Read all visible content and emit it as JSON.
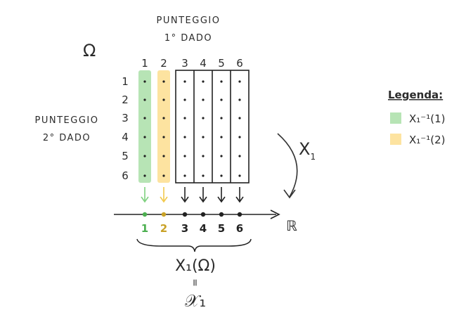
{
  "omega_symbol": "Ω",
  "top_label": {
    "line1": "PUNTEGGIO",
    "line2": "1° DADO"
  },
  "side_label": {
    "line1": "PUNTEGGIO",
    "line2": "2° DADO"
  },
  "columns": [
    "1",
    "2",
    "3",
    "4",
    "5",
    "6"
  ],
  "rows": [
    "1",
    "2",
    "3",
    "4",
    "5",
    "6"
  ],
  "axis": {
    "labels": [
      "1",
      "2",
      "3",
      "4",
      "5",
      "6"
    ],
    "label_colors": [
      "#4caf50",
      "#c9a227",
      "#222222",
      "#222222",
      "#222222",
      "#222222"
    ],
    "end_label": "ℝ"
  },
  "map_label": {
    "name": "X",
    "sub": "1"
  },
  "image_expr": {
    "top": "X₁(Ω)",
    "eq": "=",
    "bottom": "𝒳₁"
  },
  "legend": {
    "title": "Legenda:",
    "items": [
      {
        "text": "X₁⁻¹(1)",
        "color": "#b7e4b5"
      },
      {
        "text": "X₁⁻¹(2)",
        "color": "#fde3a0"
      }
    ]
  },
  "colors": {
    "col1_fill": "#b7e4b5",
    "col2_fill": "#fde3a0",
    "arrow1": "#7fd07f",
    "arrow2": "#f2c94c",
    "ink": "#222222"
  }
}
